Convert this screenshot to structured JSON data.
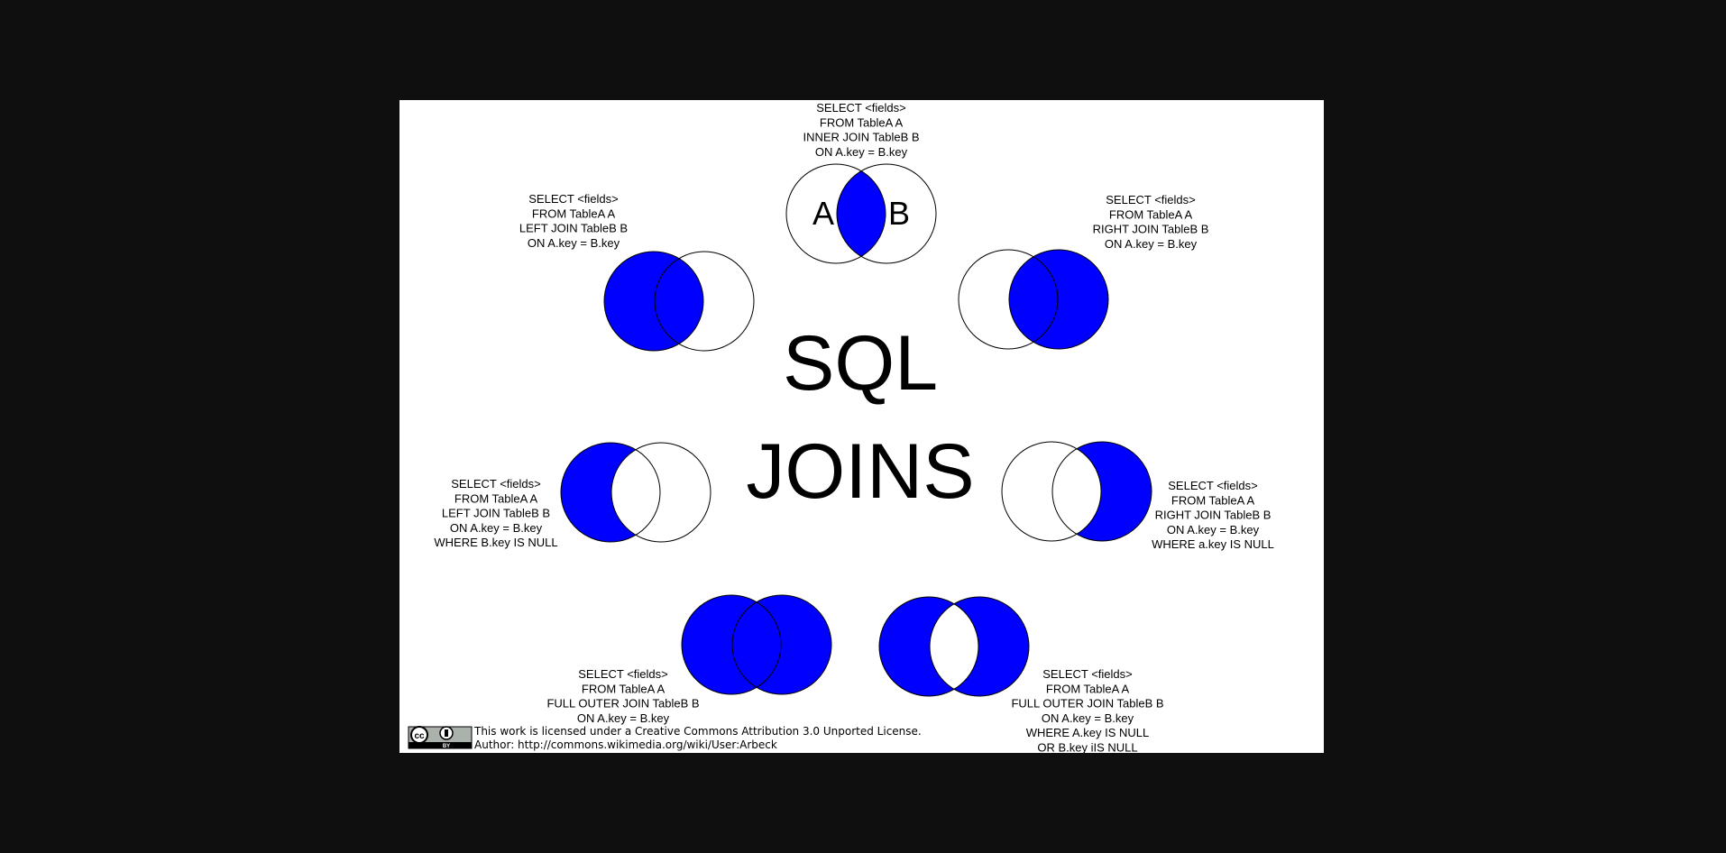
{
  "title": {
    "line1": "SQL",
    "line2": "JOINS"
  },
  "colors": {
    "fill": "#0000ff",
    "stroke": "#000000",
    "background": "#ffffff",
    "outer": "#0f0f0f"
  },
  "joins": [
    {
      "id": "inner-join",
      "label_a": "A",
      "label_b": "B",
      "query": [
        "SELECT <fields>",
        "FROM TableA  A",
        "INNER JOIN TableB  B",
        "ON A.key = B.key"
      ],
      "fill": {
        "a_only": false,
        "intersection": true,
        "b_only": false
      }
    },
    {
      "id": "left-join",
      "query": [
        "SELECT <fields>",
        "FROM TableA  A",
        "LEFT JOIN TableB  B",
        "ON A.key = B.key"
      ],
      "fill": {
        "a_only": true,
        "intersection": true,
        "b_only": false
      }
    },
    {
      "id": "right-join",
      "query": [
        "SELECT <fields>",
        "FROM TableA  A",
        "RIGHT JOIN TableB  B",
        "ON A.key = B.key"
      ],
      "fill": {
        "a_only": false,
        "intersection": true,
        "b_only": true
      }
    },
    {
      "id": "left-join-null",
      "query": [
        "SELECT <fields>",
        "FROM TableA  A",
        "LEFT JOIN TableB  B",
        "ON A.key = B.key",
        "WHERE B.key IS NULL"
      ],
      "fill": {
        "a_only": true,
        "intersection": false,
        "b_only": false
      }
    },
    {
      "id": "right-join-null",
      "query": [
        "SELECT <fields>",
        "FROM TableA  A",
        "RIGHT JOIN TableB  B",
        "ON A.key = B.key",
        "WHERE a.key IS NULL"
      ],
      "fill": {
        "a_only": false,
        "intersection": false,
        "b_only": true
      }
    },
    {
      "id": "full-outer-join",
      "query": [
        "SELECT <fields>",
        "FROM TableA  A",
        "FULL OUTER JOIN TableB  B",
        "ON A.key = B.key"
      ],
      "fill": {
        "a_only": true,
        "intersection": true,
        "b_only": true
      }
    },
    {
      "id": "full-outer-join-null",
      "query": [
        "SELECT <fields>",
        "FROM TableA  A",
        "FULL OUTER JOIN TableB  B",
        "ON A.key = B.key",
        "WHERE A.key IS NULL",
        "OR B.key iIS NULL"
      ],
      "fill": {
        "a_only": true,
        "intersection": false,
        "b_only": true
      }
    }
  ],
  "license": {
    "badge_cc": "cc",
    "badge_by": "BY",
    "line1": "This work is licensed under a Creative Commons Attribution 3.0 Unported License.",
    "line2": "Author: http://commons.wikimedia.org/wiki/User:Arbeck"
  }
}
